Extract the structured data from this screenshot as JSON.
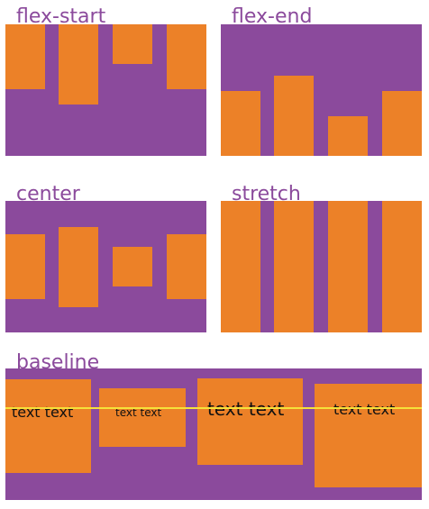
{
  "colors": {
    "container": "#8b4a9c",
    "item": "#ec8128",
    "label": "#8b4a9c",
    "baseline_line": "#f5e23a"
  },
  "panels": {
    "flex_start": {
      "label": "flex-start"
    },
    "flex_end": {
      "label": "flex-end"
    },
    "center": {
      "label": "center"
    },
    "stretch": {
      "label": "stretch"
    },
    "baseline": {
      "label": "baseline",
      "items": [
        {
          "text": "text text"
        },
        {
          "text": "text text"
        },
        {
          "text": "text text"
        },
        {
          "text": "text text"
        }
      ]
    }
  }
}
